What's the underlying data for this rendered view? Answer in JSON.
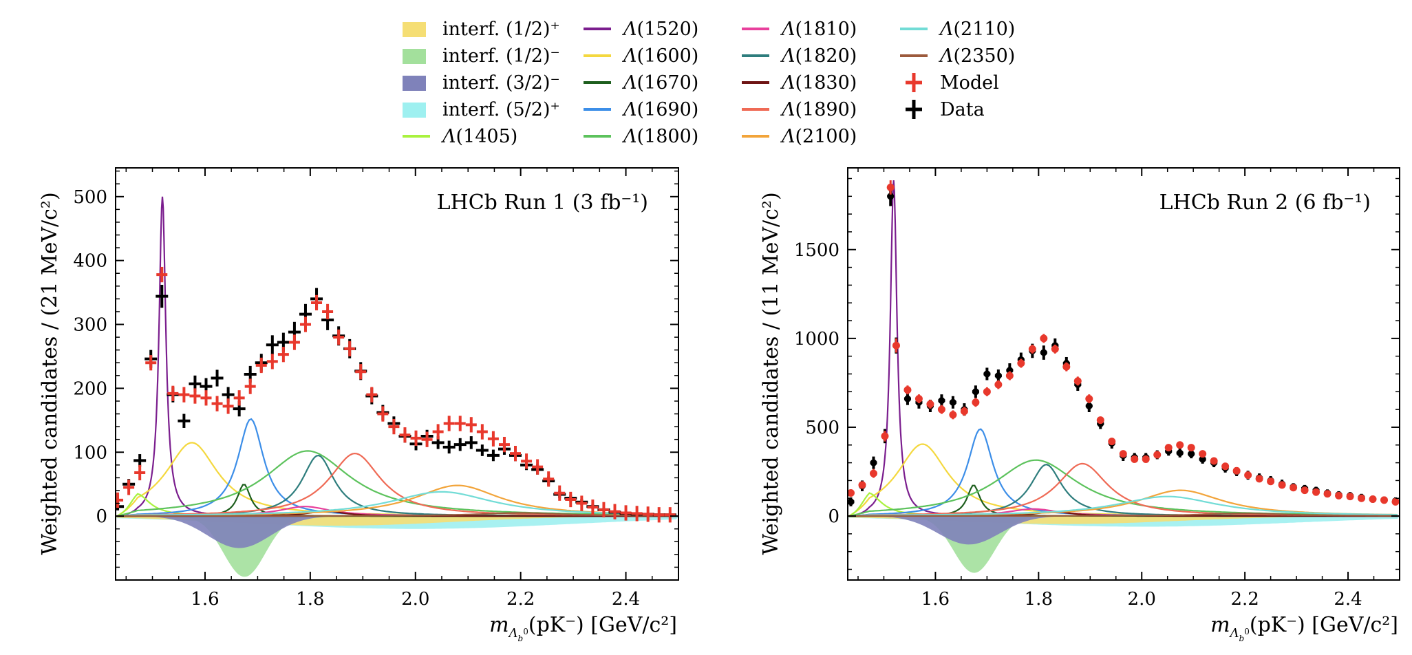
{
  "chart_data": {
    "type": "line",
    "legend": {
      "placement": "top",
      "entries": [
        {
          "key": "interf_12p",
          "label": "interf. (1/2)⁺",
          "kind": "fill",
          "color": "#f5de74"
        },
        {
          "key": "interf_12m",
          "label": "interf. (1/2)⁻",
          "kind": "fill",
          "color": "#a3e09c"
        },
        {
          "key": "interf_32m",
          "label": "interf. (3/2)⁻",
          "kind": "fill",
          "color": "#7f82ba"
        },
        {
          "key": "interf_52p",
          "label": "interf. (5/2)⁺",
          "kind": "fill",
          "color": "#9ef0f0"
        },
        {
          "key": "L1405",
          "label": "Λ(1405)",
          "kind": "line",
          "color": "#a9f23e"
        },
        {
          "key": "L1520",
          "label": "Λ(1520)",
          "kind": "line",
          "color": "#7b1e8e"
        },
        {
          "key": "L1600",
          "label": "Λ(1600)",
          "kind": "line",
          "color": "#f4d83f"
        },
        {
          "key": "L1670",
          "label": "Λ(1670)",
          "kind": "line",
          "color": "#1d5e1d"
        },
        {
          "key": "L1690",
          "label": "Λ(1690)",
          "kind": "line",
          "color": "#3c8ee8"
        },
        {
          "key": "L1800",
          "label": "Λ(1800)",
          "kind": "line",
          "color": "#5cc25c"
        },
        {
          "key": "L1810",
          "label": "Λ(1810)",
          "kind": "line",
          "color": "#e8409c"
        },
        {
          "key": "L1820",
          "label": "Λ(1820)",
          "kind": "line",
          "color": "#2e7d7d"
        },
        {
          "key": "L1830",
          "label": "Λ(1830)",
          "kind": "line",
          "color": "#6e1414"
        },
        {
          "key": "L1890",
          "label": "Λ(1890)",
          "kind": "line",
          "color": "#ef6a55"
        },
        {
          "key": "L2100",
          "label": "Λ(2100)",
          "kind": "line",
          "color": "#f2a43a"
        },
        {
          "key": "L2110",
          "label": "Λ(2110)",
          "kind": "line",
          "color": "#72dcd6"
        },
        {
          "key": "L2350",
          "label": "Λ(2350)",
          "kind": "line",
          "color": "#9c5a3c"
        },
        {
          "key": "model",
          "label": "Model",
          "kind": "marker",
          "color": "#e8382c"
        },
        {
          "key": "data",
          "label": "Data",
          "kind": "marker",
          "color": "#000000"
        }
      ]
    },
    "panels": [
      {
        "id": "run1",
        "annotation": "LHCb Run 1 (3 fb⁻¹)",
        "xlabel": "m_Λb⁰(pK⁻) [GeV/c²]",
        "xlabel_parts": {
          "m": "m",
          "sub": "Λ",
          "subsub": "0",
          "subsubb": "b",
          "rest": "(pK⁻) [GeV/c²]"
        },
        "ylabel": "Weighted candidates / (21 MeV/c²)",
        "xlim": [
          1.43,
          2.5
        ],
        "ylim": [
          -100,
          545
        ],
        "xticks": [
          1.6,
          1.8,
          2.0,
          2.2,
          2.4
        ],
        "xtick_labels": [
          "1.6",
          "1.8",
          "2.0",
          "2.2",
          "2.4"
        ],
        "yticks": [
          0,
          100,
          200,
          300,
          400,
          500
        ],
        "ytick_labels": [
          "0",
          "100",
          "200",
          "300",
          "400",
          "500"
        ],
        "components": [
          {
            "key": "L1520",
            "type": "bw",
            "mass": 1.519,
            "width": 0.0156,
            "peak": 500
          },
          {
            "key": "L1600",
            "type": "bw",
            "mass": 1.575,
            "width": 0.12,
            "peak": 115
          },
          {
            "key": "L1405",
            "type": "bw",
            "mass": 1.47,
            "width": 0.06,
            "peak": 35
          },
          {
            "key": "L1670",
            "type": "bw",
            "mass": 1.674,
            "width": 0.03,
            "peak": 50
          },
          {
            "key": "L1690",
            "type": "bw",
            "mass": 1.687,
            "width": 0.06,
            "peak": 152
          },
          {
            "key": "L1800",
            "type": "bw",
            "mass": 1.795,
            "width": 0.2,
            "peak": 102
          },
          {
            "key": "L1810",
            "type": "bw",
            "mass": 1.79,
            "width": 0.12,
            "peak": 15
          },
          {
            "key": "L1820",
            "type": "bw",
            "mass": 1.815,
            "width": 0.075,
            "peak": 95
          },
          {
            "key": "L1830",
            "type": "bw",
            "mass": 1.83,
            "width": 0.08,
            "peak": 8
          },
          {
            "key": "L1890",
            "type": "bw",
            "mass": 1.885,
            "width": 0.12,
            "peak": 98
          },
          {
            "key": "L2100",
            "type": "bw",
            "mass": 2.08,
            "width": 0.2,
            "peak": 48
          },
          {
            "key": "L2110",
            "type": "bw",
            "mass": 2.05,
            "width": 0.24,
            "peak": 38
          },
          {
            "key": "L2350",
            "type": "bw",
            "mass": 2.2,
            "width": 0.2,
            "peak": 5
          }
        ],
        "interference": [
          {
            "key": "interf_52p",
            "center": 2.0,
            "width": 0.3,
            "depth": 20
          },
          {
            "key": "interf_12p",
            "center": 1.85,
            "width": 0.22,
            "depth": 15
          },
          {
            "key": "interf_12m",
            "center": 1.675,
            "width": 0.04,
            "depth": 95
          },
          {
            "key": "interf_32m",
            "center": 1.665,
            "width": 0.06,
            "depth": 50
          }
        ],
        "model": {
          "x": [
            1.434,
            1.455,
            1.476,
            1.497,
            1.518,
            1.539,
            1.56,
            1.581,
            1.602,
            1.623,
            1.644,
            1.665,
            1.686,
            1.707,
            1.728,
            1.749,
            1.77,
            1.791,
            1.812,
            1.833,
            1.854,
            1.875,
            1.896,
            1.917,
            1.938,
            1.959,
            1.98,
            2.001,
            2.022,
            2.043,
            2.064,
            2.085,
            2.106,
            2.127,
            2.148,
            2.169,
            2.19,
            2.211,
            2.232,
            2.253,
            2.274,
            2.295,
            2.316,
            2.337,
            2.358,
            2.379,
            2.4,
            2.421,
            2.442,
            2.463,
            2.484
          ],
          "y": [
            25,
            45,
            68,
            240,
            378,
            192,
            190,
            188,
            185,
            176,
            172,
            185,
            203,
            236,
            242,
            253,
            272,
            300,
            334,
            320,
            280,
            262,
            226,
            190,
            160,
            140,
            127,
            122,
            120,
            132,
            145,
            145,
            143,
            132,
            121,
            112,
            98,
            86,
            77,
            58,
            36,
            26,
            20,
            14,
            10,
            7,
            5,
            4,
            3,
            2,
            2
          ]
        },
        "data": {
          "x": [
            1.434,
            1.455,
            1.476,
            1.497,
            1.518,
            1.539,
            1.56,
            1.581,
            1.602,
            1.623,
            1.644,
            1.665,
            1.686,
            1.707,
            1.728,
            1.749,
            1.77,
            1.791,
            1.812,
            1.833,
            1.854,
            1.875,
            1.896,
            1.917,
            1.938,
            1.959,
            1.98,
            2.001,
            2.022,
            2.043,
            2.064,
            2.085,
            2.106,
            2.127,
            2.148,
            2.169,
            2.19,
            2.211,
            2.232,
            2.253,
            2.274,
            2.295,
            2.316,
            2.337,
            2.358,
            2.379,
            2.4,
            2.421,
            2.442,
            2.463,
            2.484
          ],
          "y": [
            15,
            50,
            87,
            246,
            344,
            190,
            149,
            207,
            203,
            216,
            190,
            168,
            222,
            240,
            268,
            272,
            288,
            316,
            340,
            307,
            282,
            262,
            227,
            188,
            162,
            145,
            125,
            113,
            125,
            115,
            108,
            112,
            115,
            103,
            95,
            105,
            95,
            80,
            73,
            55,
            34,
            28,
            22,
            15,
            10,
            6,
            4,
            3,
            3,
            2,
            2
          ],
          "yerr": [
            6,
            8,
            10,
            14,
            18,
            12,
            11,
            13,
            13,
            13,
            12,
            12,
            13,
            14,
            15,
            15,
            16,
            16,
            17,
            16,
            15,
            15,
            14,
            13,
            12,
            11,
            10,
            10,
            10,
            10,
            10,
            10,
            10,
            9,
            9,
            9,
            9,
            8,
            8,
            7,
            6,
            5,
            5,
            4,
            3,
            3,
            2,
            2,
            2,
            2,
            2
          ]
        }
      },
      {
        "id": "run2",
        "annotation": "LHCb Run 2 (6 fb⁻¹)",
        "xlabel": "m_Λb⁰(pK⁻) [GeV/c²]",
        "ylabel": "Weighted candidates / (11 MeV/c²)",
        "xlim": [
          1.43,
          2.5
        ],
        "ylim": [
          -360,
          1960
        ],
        "xticks": [
          1.6,
          1.8,
          2.0,
          2.2,
          2.4
        ],
        "xtick_labels": [
          "1.6",
          "1.8",
          "2.0",
          "2.2",
          "2.4"
        ],
        "yticks": [
          0,
          500,
          1000,
          1500
        ],
        "ytick_labels": [
          "0",
          "500",
          "1000",
          "1500"
        ],
        "components": [
          {
            "key": "L1520",
            "type": "bw",
            "mass": 1.519,
            "width": 0.0156,
            "peak": 1890
          },
          {
            "key": "L1600",
            "type": "bw",
            "mass": 1.575,
            "width": 0.12,
            "peak": 405
          },
          {
            "key": "L1405",
            "type": "bw",
            "mass": 1.47,
            "width": 0.06,
            "peak": 130
          },
          {
            "key": "L1670",
            "type": "bw",
            "mass": 1.674,
            "width": 0.03,
            "peak": 175
          },
          {
            "key": "L1690",
            "type": "bw",
            "mass": 1.687,
            "width": 0.06,
            "peak": 490
          },
          {
            "key": "L1800",
            "type": "bw",
            "mass": 1.795,
            "width": 0.2,
            "peak": 315
          },
          {
            "key": "L1810",
            "type": "bw",
            "mass": 1.79,
            "width": 0.12,
            "peak": 40
          },
          {
            "key": "L1820",
            "type": "bw",
            "mass": 1.815,
            "width": 0.075,
            "peak": 290
          },
          {
            "key": "L1830",
            "type": "bw",
            "mass": 1.83,
            "width": 0.08,
            "peak": 25
          },
          {
            "key": "L1890",
            "type": "bw",
            "mass": 1.885,
            "width": 0.12,
            "peak": 295
          },
          {
            "key": "L2100",
            "type": "bw",
            "mass": 2.075,
            "width": 0.2,
            "peak": 145
          },
          {
            "key": "L2110",
            "type": "bw",
            "mass": 2.05,
            "width": 0.24,
            "peak": 110
          },
          {
            "key": "L2350",
            "type": "bw",
            "mass": 2.2,
            "width": 0.2,
            "peak": 15
          }
        ],
        "interference": [
          {
            "key": "interf_52p",
            "center": 2.0,
            "width": 0.3,
            "depth": 60
          },
          {
            "key": "interf_12p",
            "center": 1.85,
            "width": 0.22,
            "depth": 45
          },
          {
            "key": "interf_12m",
            "center": 1.675,
            "width": 0.04,
            "depth": 320
          },
          {
            "key": "interf_32m",
            "center": 1.665,
            "width": 0.06,
            "depth": 160
          }
        ],
        "model": {
          "x": [
            1.436,
            1.458,
            1.48,
            1.502,
            1.513,
            1.524,
            1.546,
            1.568,
            1.59,
            1.612,
            1.634,
            1.656,
            1.678,
            1.7,
            1.722,
            1.744,
            1.766,
            1.788,
            1.81,
            1.832,
            1.854,
            1.876,
            1.898,
            1.92,
            1.942,
            1.964,
            1.986,
            2.008,
            2.03,
            2.052,
            2.074,
            2.096,
            2.118,
            2.14,
            2.162,
            2.184,
            2.206,
            2.228,
            2.25,
            2.272,
            2.294,
            2.316,
            2.338,
            2.36,
            2.382,
            2.404,
            2.426,
            2.448,
            2.47,
            2.492
          ],
          "y": [
            130,
            175,
            240,
            450,
            1850,
            960,
            710,
            660,
            630,
            600,
            570,
            590,
            640,
            700,
            740,
            790,
            860,
            940,
            1000,
            940,
            840,
            760,
            660,
            540,
            420,
            350,
            320,
            320,
            345,
            385,
            400,
            385,
            350,
            310,
            280,
            255,
            230,
            210,
            195,
            175,
            160,
            145,
            135,
            125,
            115,
            110,
            100,
            95,
            90,
            80
          ],
          "yerr": [
            20,
            20,
            25,
            30,
            40,
            40,
            25,
            25,
            25,
            25,
            25,
            25,
            25,
            25,
            25,
            25,
            25,
            25,
            25,
            25,
            25,
            25,
            25,
            20,
            20,
            20,
            20,
            20,
            20,
            20,
            20,
            20,
            20,
            20,
            20,
            20,
            20,
            20,
            20,
            20,
            20,
            20,
            20,
            20,
            20,
            20,
            20,
            20,
            20,
            20
          ]
        },
        "data": {
          "x": [
            1.436,
            1.458,
            1.48,
            1.502,
            1.513,
            1.524,
            1.546,
            1.568,
            1.59,
            1.612,
            1.634,
            1.656,
            1.678,
            1.7,
            1.722,
            1.744,
            1.766,
            1.788,
            1.81,
            1.832,
            1.854,
            1.876,
            1.898,
            1.92,
            1.942,
            1.964,
            1.986,
            2.008,
            2.03,
            2.052,
            2.074,
            2.096,
            2.118,
            2.14,
            2.162,
            2.184,
            2.206,
            2.228,
            2.25,
            2.272,
            2.294,
            2.316,
            2.338,
            2.36,
            2.382,
            2.404,
            2.426,
            2.448,
            2.47,
            2.492
          ],
          "y": [
            80,
            170,
            300,
            450,
            1800,
            960,
            660,
            640,
            620,
            650,
            640,
            600,
            700,
            800,
            790,
            820,
            880,
            930,
            920,
            960,
            860,
            740,
            620,
            520,
            410,
            340,
            330,
            330,
            345,
            365,
            355,
            350,
            320,
            300,
            270,
            250,
            230,
            215,
            200,
            180,
            165,
            155,
            145,
            130,
            120,
            115,
            105,
            95,
            90,
            85
          ],
          "yerr": [
            25,
            30,
            35,
            40,
            55,
            45,
            35,
            35,
            35,
            35,
            35,
            35,
            35,
            35,
            35,
            40,
            40,
            40,
            40,
            40,
            35,
            35,
            35,
            30,
            30,
            30,
            25,
            25,
            25,
            25,
            25,
            25,
            25,
            25,
            25,
            25,
            25,
            25,
            25,
            25,
            20,
            20,
            20,
            20,
            20,
            20,
            20,
            20,
            20,
            20
          ]
        }
      }
    ]
  }
}
